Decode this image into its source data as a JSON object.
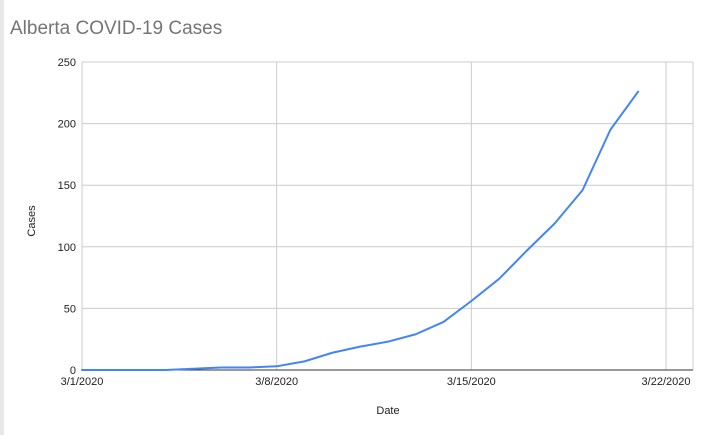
{
  "chart_data": {
    "type": "line",
    "title": "Alberta COVID-19 Cases",
    "xlabel": "Date",
    "ylabel": "Cases",
    "ylim": [
      0,
      250
    ],
    "yticks": [
      0,
      50,
      100,
      150,
      200,
      250
    ],
    "xlim": [
      "3/1/2020",
      "3/22/2020"
    ],
    "xticks": [
      "3/1/2020",
      "3/8/2020",
      "3/15/2020",
      "3/22/2020"
    ],
    "grid": true,
    "line_color": "#4285f4",
    "series": [
      {
        "x": [
          "3/1/2020",
          "3/2/2020",
          "3/3/2020",
          "3/4/2020",
          "3/5/2020",
          "3/6/2020",
          "3/7/2020",
          "3/8/2020",
          "3/9/2020",
          "3/10/2020",
          "3/11/2020",
          "3/12/2020",
          "3/13/2020",
          "3/14/2020",
          "3/15/2020",
          "3/16/2020",
          "3/17/2020",
          "3/18/2020",
          "3/19/2020",
          "3/20/2020",
          "3/21/2020"
        ],
        "values": [
          0,
          0,
          0,
          0,
          1,
          2,
          2,
          3,
          7,
          14,
          19,
          23,
          29,
          39,
          56,
          74,
          97,
          119,
          146,
          195,
          226
        ]
      }
    ]
  }
}
